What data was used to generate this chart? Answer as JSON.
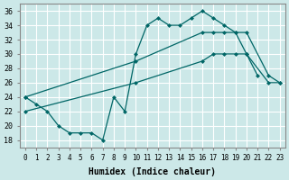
{
  "xlabel": "Humidex (Indice chaleur)",
  "bg_color": "#cce8e8",
  "grid_color": "#ffffff",
  "line_color": "#006666",
  "xlim": [
    -0.5,
    23.5
  ],
  "ylim": [
    17,
    37
  ],
  "xticks": [
    0,
    1,
    2,
    3,
    4,
    5,
    6,
    7,
    8,
    9,
    10,
    11,
    12,
    13,
    14,
    15,
    16,
    17,
    18,
    19,
    20,
    21,
    22,
    23
  ],
  "yticks": [
    18,
    20,
    22,
    24,
    26,
    28,
    30,
    32,
    34,
    36
  ],
  "line_zigzag_x": [
    0,
    1,
    2,
    3,
    4,
    5,
    6,
    7,
    8,
    9,
    10,
    11,
    12,
    13,
    14,
    15,
    16,
    17,
    18,
    19,
    20,
    21
  ],
  "line_zigzag_y": [
    24,
    23,
    22,
    20,
    19,
    19,
    19,
    18,
    24,
    22,
    30,
    34,
    35,
    34,
    34,
    35,
    36,
    35,
    34,
    33,
    30,
    27
  ],
  "line_mid_x": [
    0,
    10,
    16,
    17,
    18,
    19,
    20,
    22,
    23
  ],
  "line_mid_y": [
    24,
    29,
    33,
    33,
    33,
    33,
    33,
    27,
    26
  ],
  "line_bot_x": [
    0,
    10,
    16,
    17,
    18,
    19,
    20,
    22,
    23
  ],
  "line_bot_y": [
    22,
    26,
    29,
    30,
    30,
    30,
    30,
    26,
    26
  ],
  "marker_size": 2.5,
  "line_width": 0.9
}
